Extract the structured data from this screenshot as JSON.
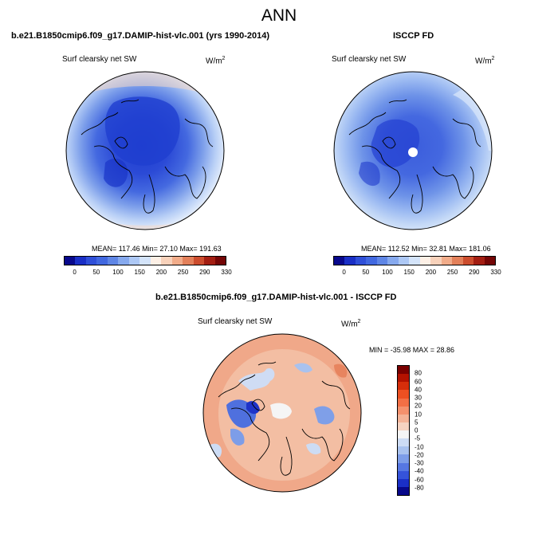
{
  "header": {
    "title": "ANN"
  },
  "panels": {
    "model": {
      "title": "b.e21.B1850cmip6.f09_g17.DAMIP-hist-vlc.001 (yrs 1990-2014)",
      "variable": "Surf clearsky net SW",
      "units_base": "W/m",
      "units_sup": "2",
      "stats": "MEAN= 117.46  Min=  27.10  Max= 191.63"
    },
    "obs": {
      "title": "ISCCP FD",
      "variable": "Surf clearsky net SW",
      "units_base": "W/m",
      "units_sup": "2",
      "stats": "MEAN= 112.52  Min=  32.81  Max= 181.06"
    },
    "diff": {
      "title": "b.e21.B1850cmip6.f09_g17.DAMIP-hist-vlc.001 - ISCCP FD",
      "variable": "Surf clearsky net SW",
      "units_base": "W/m",
      "units_sup": "2",
      "stats": "MIN = -35.98 MAX =  28.86"
    }
  },
  "colorbars": {
    "abs": {
      "ticks": [
        "0",
        "50",
        "100",
        "150",
        "200",
        "250",
        "290",
        "330"
      ],
      "colors": [
        "#08088c",
        "#1a2fc6",
        "#2f4fd8",
        "#4168e0",
        "#5f86e6",
        "#86a9ee",
        "#adc8f5",
        "#d4e4fa",
        "#fdf0e6",
        "#f8d2bb",
        "#f1ac8a",
        "#e3805a",
        "#cc4d2e",
        "#a31e12",
        "#740606"
      ]
    },
    "diff": {
      "ticks": [
        "80",
        "60",
        "40",
        "30",
        "20",
        "10",
        "5",
        "0",
        "-5",
        "-10",
        "-20",
        "-30",
        "-40",
        "-60",
        "-80"
      ],
      "colors": [
        "#7a0000",
        "#b31200",
        "#d62e0b",
        "#ec5022",
        "#f26f45",
        "#f4916d",
        "#f4b397",
        "#f6d3c1",
        "#f5f5f5",
        "#cddcf4",
        "#a9c2ee",
        "#7d9de8",
        "#5677e2",
        "#3553d9",
        "#1a2fc6",
        "#07088a"
      ]
    }
  }
}
